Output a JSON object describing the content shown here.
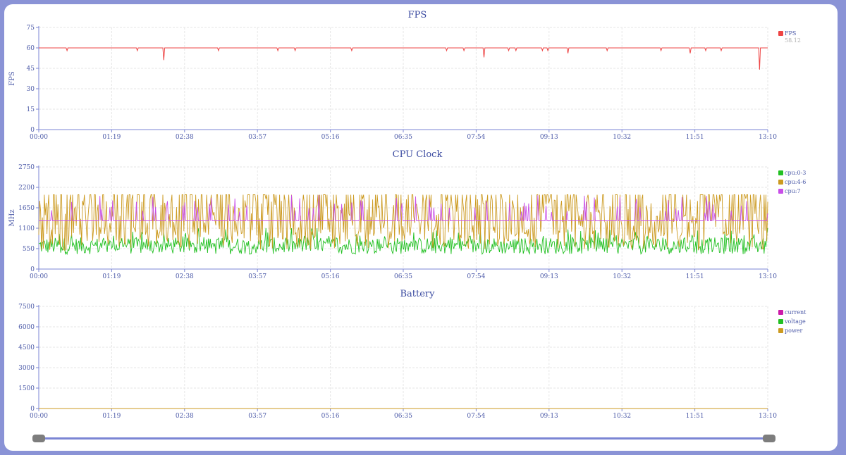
{
  "colors": {
    "fps": "#ee4444",
    "cpu_0_3": "#22c022",
    "cpu_4_6": "#cc9a20",
    "cpu_7": "#c84ee8",
    "current": "#cc1aa8",
    "voltage": "#22c022",
    "power": "#cc9a20",
    "axis": "#7b85d4",
    "grid": "#e6e6e6"
  },
  "chart_data": [
    {
      "type": "line",
      "title": "FPS",
      "ylabel": "FPS",
      "ylim": [
        0,
        75
      ],
      "yticks": [
        "0",
        "15",
        "30",
        "45",
        "60",
        "75"
      ],
      "xticks": [
        "00:00",
        "01:19",
        "02:38",
        "03:57",
        "05:16",
        "06:35",
        "07:54",
        "09:13",
        "10:32",
        "11:51",
        "13:10"
      ],
      "grid": true,
      "legend": "right",
      "series": [
        {
          "name": "FPS",
          "summary": "58.12",
          "color": "#ee4444",
          "baseline": 60,
          "dips": [
            [
              31,
              58
            ],
            [
              108,
              58
            ],
            [
              137,
              51
            ],
            [
              197,
              58
            ],
            [
              262,
              58
            ],
            [
              281,
              58
            ],
            [
              343,
              58
            ],
            [
              447,
              58
            ],
            [
              466,
              58
            ],
            [
              488,
              53
            ],
            [
              515,
              58
            ],
            [
              523,
              58
            ],
            [
              552,
              58
            ],
            [
              558,
              58
            ],
            [
              580,
              56
            ],
            [
              623,
              58
            ],
            [
              682,
              58
            ],
            [
              714,
              56
            ],
            [
              731,
              58
            ],
            [
              748,
              58
            ],
            [
              790,
              44
            ]
          ]
        }
      ]
    },
    {
      "type": "line",
      "title": "CPU Clock",
      "ylabel": "MHz",
      "ylim": [
        0,
        2750
      ],
      "yticks": [
        "0",
        "550",
        "1100",
        "1650",
        "2200",
        "2750"
      ],
      "xticks": [
        "00:00",
        "01:19",
        "02:38",
        "03:57",
        "05:16",
        "06:35",
        "07:54",
        "09:13",
        "10:32",
        "11:51",
        "13:10"
      ],
      "grid": true,
      "legend": "right",
      "series": [
        {
          "name": "cpu:0-3",
          "color": "#22c022",
          "min": 200,
          "max": 1100
        },
        {
          "name": "cpu:4-6",
          "color": "#cc9a20",
          "min": 400,
          "max": 2000
        },
        {
          "name": "cpu:7",
          "color": "#c84ee8",
          "baseline": 1300,
          "max": 2000
        }
      ]
    },
    {
      "type": "line",
      "title": "Battery",
      "ylabel": "",
      "ylim": [
        0,
        7500
      ],
      "yticks": [
        "0",
        "1500",
        "3000",
        "4500",
        "6000",
        "7500"
      ],
      "xticks": [
        "00:00",
        "01:19",
        "02:38",
        "03:57",
        "05:16",
        "06:35",
        "07:54",
        "09:13",
        "10:32",
        "11:51",
        "13:10"
      ],
      "grid": true,
      "legend": "right",
      "series": [
        {
          "name": "current",
          "color": "#cc1aa8",
          "value": 0
        },
        {
          "name": "voltage",
          "color": "#22c022",
          "value": 0
        },
        {
          "name": "power",
          "color": "#cc9a20",
          "value": 0
        }
      ]
    }
  ]
}
